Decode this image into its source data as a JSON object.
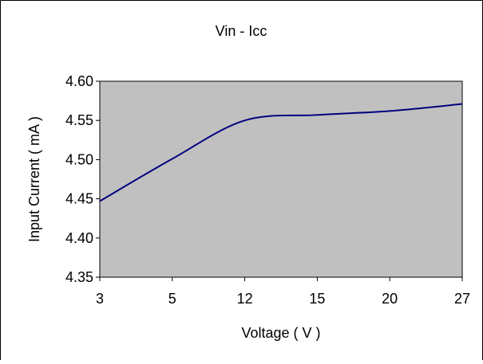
{
  "chart_data": {
    "type": "line",
    "title": "Vin - Icc",
    "xlabel": "Voltage ( V )",
    "ylabel": "Input Current ( mA )",
    "x_scale": "categorical",
    "categories": [
      "3",
      "5",
      "12",
      "15",
      "20",
      "27"
    ],
    "y_ticks": [
      "4.35",
      "4.40",
      "4.45",
      "4.50",
      "4.55",
      "4.60"
    ],
    "ylim": [
      4.35,
      4.6
    ],
    "grid": false,
    "legend": "none",
    "plot_background": "#c0c0c0",
    "series": [
      {
        "color": "#000080",
        "values": [
          4.447,
          4.501,
          4.55,
          4.557,
          4.562,
          4.571
        ]
      }
    ]
  }
}
